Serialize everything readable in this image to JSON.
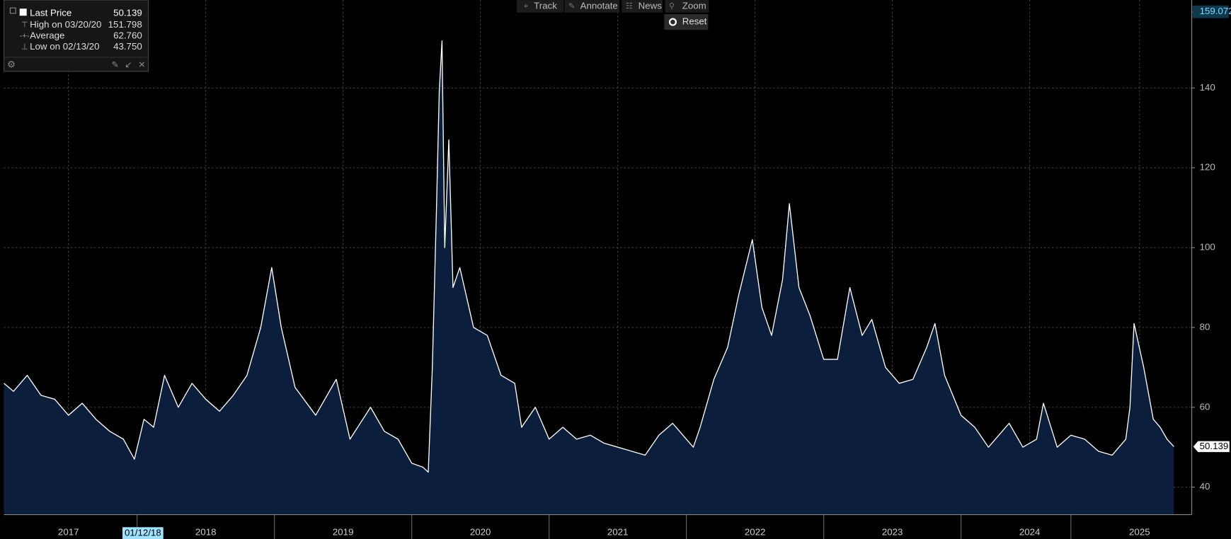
{
  "chart_data": {
    "type": "area",
    "series": [
      {
        "name": "Last Price",
        "color": "#ffffff",
        "fill": "#0b1e3b",
        "x": [
          2017.03,
          2017.1,
          2017.2,
          2017.3,
          2017.4,
          2017.5,
          2017.6,
          2017.7,
          2017.8,
          2017.9,
          2017.98,
          2018.05,
          2018.12,
          2018.2,
          2018.3,
          2018.4,
          2018.5,
          2018.6,
          2018.7,
          2018.8,
          2018.9,
          2018.98,
          2019.05,
          2019.15,
          2019.3,
          2019.45,
          2019.55,
          2019.7,
          2019.8,
          2019.9,
          2020.0,
          2020.08,
          2020.12,
          2020.15,
          2020.18,
          2020.2,
          2020.22,
          2020.24,
          2020.27,
          2020.3,
          2020.35,
          2020.45,
          2020.55,
          2020.65,
          2020.75,
          2020.8,
          2020.9,
          2021.0,
          2021.1,
          2021.2,
          2021.3,
          2021.4,
          2021.5,
          2021.6,
          2021.7,
          2021.8,
          2021.9,
          2022.0,
          2022.05,
          2022.1,
          2022.2,
          2022.3,
          2022.38,
          2022.48,
          2022.55,
          2022.62,
          2022.7,
          2022.75,
          2022.82,
          2022.9,
          2023.0,
          2023.1,
          2023.19,
          2023.28,
          2023.35,
          2023.45,
          2023.55,
          2023.65,
          2023.75,
          2023.81,
          2023.88,
          2024.0,
          2024.1,
          2024.2,
          2024.3,
          2024.35,
          2024.45,
          2024.55,
          2024.6,
          2024.7,
          2024.8,
          2024.9,
          2025.0,
          2025.1,
          2025.2,
          2025.23,
          2025.26,
          2025.33,
          2025.4,
          2025.45,
          2025.5,
          2025.55
        ],
        "values": [
          66,
          64,
          68,
          63,
          62,
          58,
          61,
          57,
          54,
          52,
          47,
          57,
          55,
          68,
          60,
          66,
          62,
          59,
          63,
          68,
          80,
          95,
          80,
          65,
          58,
          67,
          52,
          60,
          54,
          52,
          46,
          45,
          43.75,
          70,
          110,
          139,
          151.798,
          100,
          127,
          90,
          95,
          80,
          78,
          68,
          66,
          55,
          60,
          52,
          55,
          52,
          53,
          51,
          50,
          49,
          48,
          53,
          56,
          52,
          50,
          55,
          67,
          75,
          88,
          102,
          85,
          78,
          92,
          111,
          90,
          83,
          72,
          72,
          90,
          78,
          82,
          70,
          66,
          67,
          75,
          81,
          68,
          58,
          55,
          50,
          54,
          56,
          50,
          52,
          61,
          50,
          53,
          52,
          49,
          48,
          52,
          60,
          81,
          70,
          57,
          55,
          52,
          50.139
        ]
      }
    ],
    "xlim": [
      2017.03,
      2025.68
    ],
    "xticks": [
      {
        "value": 2017.5,
        "label": "2017"
      },
      {
        "value": 2018.5,
        "label": "2018"
      },
      {
        "value": 2019.5,
        "label": "2019"
      },
      {
        "value": 2020.5,
        "label": "2020"
      },
      {
        "value": 2021.5,
        "label": "2021"
      },
      {
        "value": 2022.5,
        "label": "2022"
      },
      {
        "value": 2023.5,
        "label": "2023"
      },
      {
        "value": 2024.5,
        "label": "2024"
      },
      {
        "value": 2025.3,
        "label": "2025"
      }
    ],
    "ylim": [
      33.1,
      159.072
    ],
    "yticks": [
      40,
      60,
      80,
      100,
      120,
      140,
      159.072
    ],
    "grid": true,
    "annotation": "01/12/18",
    "legend": [
      {
        "label": "Last Price",
        "value": "50.139"
      },
      {
        "label": "High on 03/20/20",
        "value": "151.798"
      },
      {
        "label": "Average",
        "value": "62.760"
      },
      {
        "label": "Low on 02/13/20",
        "value": "43.750"
      }
    ]
  },
  "toolbar": [
    "Track",
    "Annotate",
    "News",
    "Zoom"
  ],
  "reset": "Reset"
}
